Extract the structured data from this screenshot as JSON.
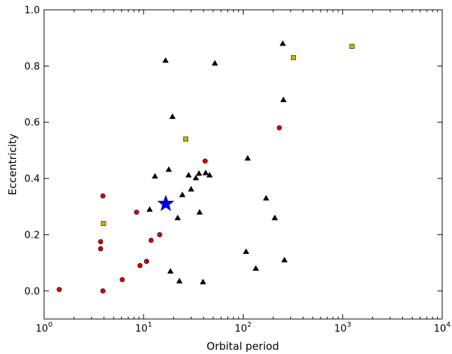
{
  "chart_data": {
    "type": "scatter",
    "xlabel": "Orbital period",
    "ylabel": "Eccentricity",
    "xscale": "log",
    "xlim": [
      1,
      10000
    ],
    "ylim": [
      -0.1,
      1.0
    ],
    "grid": false,
    "xticks": [
      {
        "value": 1,
        "base": "10",
        "exp": "0"
      },
      {
        "value": 10,
        "base": "10",
        "exp": "1"
      },
      {
        "value": 100,
        "base": "10",
        "exp": "2"
      },
      {
        "value": 1000,
        "base": "10",
        "exp": "3"
      },
      {
        "value": 10000,
        "base": "10",
        "exp": "4"
      }
    ],
    "yticks": [
      {
        "value": 0.0,
        "label": "0.0"
      },
      {
        "value": 0.2,
        "label": "0.2"
      },
      {
        "value": 0.4,
        "label": "0.4"
      },
      {
        "value": 0.6,
        "label": "0.6"
      },
      {
        "value": 0.8,
        "label": "0.8"
      },
      {
        "value": 1.0,
        "label": "1.0"
      }
    ],
    "series": [
      {
        "marker": "circle",
        "color": "#d40000",
        "points": [
          {
            "x": 1.42,
            "y": 0.005
          },
          {
            "x": 3.7,
            "y": 0.175
          },
          {
            "x": 3.7,
            "y": 0.15
          },
          {
            "x": 3.9,
            "y": 0.338
          },
          {
            "x": 3.9,
            "y": 0.0
          },
          {
            "x": 6.1,
            "y": 0.04
          },
          {
            "x": 8.5,
            "y": 0.28
          },
          {
            "x": 9.2,
            "y": 0.09
          },
          {
            "x": 10.7,
            "y": 0.105
          },
          {
            "x": 11.9,
            "y": 0.18
          },
          {
            "x": 14.5,
            "y": 0.2
          },
          {
            "x": 41.5,
            "y": 0.462
          },
          {
            "x": 231,
            "y": 0.58
          }
        ]
      },
      {
        "marker": "triangle",
        "color": "#000000",
        "points": [
          {
            "x": 11.5,
            "y": 0.29
          },
          {
            "x": 13.0,
            "y": 0.408
          },
          {
            "x": 16.6,
            "y": 0.82
          },
          {
            "x": 17.9,
            "y": 0.432
          },
          {
            "x": 18.6,
            "y": 0.07
          },
          {
            "x": 19.5,
            "y": 0.62
          },
          {
            "x": 22.0,
            "y": 0.26
          },
          {
            "x": 22.9,
            "y": 0.035
          },
          {
            "x": 24.5,
            "y": 0.342
          },
          {
            "x": 28.3,
            "y": 0.412
          },
          {
            "x": 30.0,
            "y": 0.362
          },
          {
            "x": 33.5,
            "y": 0.402
          },
          {
            "x": 36.0,
            "y": 0.418
          },
          {
            "x": 36.5,
            "y": 0.28
          },
          {
            "x": 39.5,
            "y": 0.032
          },
          {
            "x": 42.0,
            "y": 0.42
          },
          {
            "x": 46.0,
            "y": 0.412
          },
          {
            "x": 52.0,
            "y": 0.81
          },
          {
            "x": 107,
            "y": 0.14
          },
          {
            "x": 111,
            "y": 0.472
          },
          {
            "x": 134,
            "y": 0.08
          },
          {
            "x": 170,
            "y": 0.33
          },
          {
            "x": 208,
            "y": 0.26
          },
          {
            "x": 250,
            "y": 0.88
          },
          {
            "x": 254,
            "y": 0.68
          },
          {
            "x": 260,
            "y": 0.11
          }
        ]
      },
      {
        "marker": "square",
        "color": "#c8b400",
        "points": [
          {
            "x": 3.95,
            "y": 0.24
          },
          {
            "x": 26.5,
            "y": 0.54
          },
          {
            "x": 320,
            "y": 0.83
          },
          {
            "x": 1240,
            "y": 0.87
          }
        ]
      },
      {
        "marker": "star",
        "color": "#0000dd",
        "points": [
          {
            "x": 16.7,
            "y": 0.31
          }
        ]
      }
    ]
  }
}
